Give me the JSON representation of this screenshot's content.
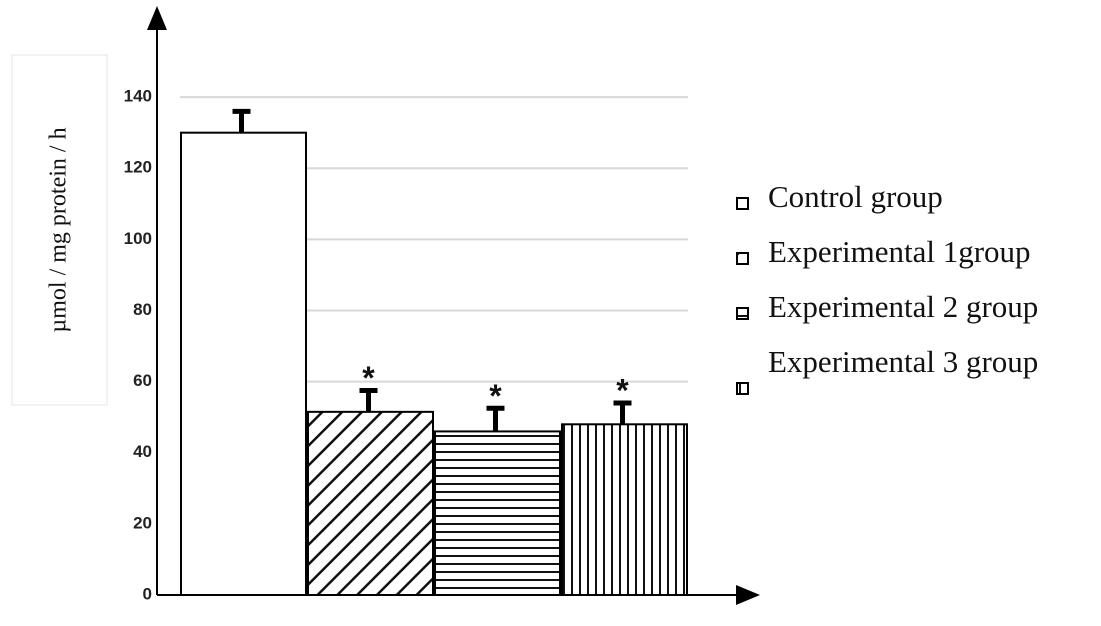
{
  "chart_data": {
    "type": "bar",
    "ylabel": "µmol / mg protein / h",
    "ylim": [
      0,
      160
    ],
    "yticks": [
      0,
      20,
      40,
      60,
      80,
      100,
      120,
      140
    ],
    "grid": true,
    "series": [
      {
        "name": "Control group",
        "color": "#000000",
        "pattern": "none",
        "values": [
          130
        ],
        "errors": [
          6
        ]
      },
      {
        "name": "Experimental 1group",
        "color": "#000000",
        "pattern": "diagonal",
        "values": [
          51.5
        ],
        "errors": [
          6
        ],
        "annotation": "*"
      },
      {
        "name": "Experimental 2 group",
        "color": "#000000",
        "pattern": "horizontal",
        "values": [
          46
        ],
        "errors": [
          6.5
        ],
        "annotation": "*"
      },
      {
        "name": "Experimental 3 group",
        "color": "#000000",
        "pattern": "vertical",
        "values": [
          48
        ],
        "errors": [
          6
        ],
        "annotation": "*"
      }
    ]
  }
}
